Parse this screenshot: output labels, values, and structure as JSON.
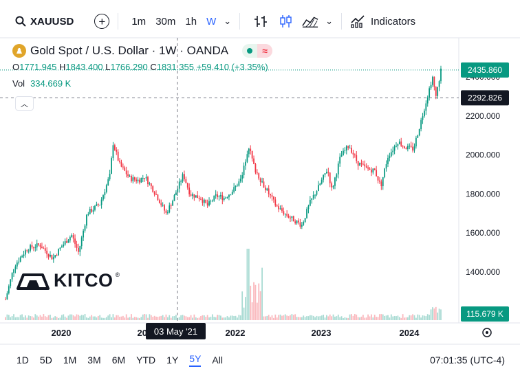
{
  "toolbar": {
    "symbol": "XAUUSD",
    "intervals": [
      "1m",
      "30m",
      "1h",
      "W"
    ],
    "active_interval": "W",
    "indicators_label": "Indicators"
  },
  "header": {
    "title": "Gold Spot / U.S. Dollar · 1W · OANDA",
    "ohlc": {
      "o_key": "O",
      "o_val": "1771.945",
      "h_key": "H",
      "h_val": "1843.400",
      "l_key": "L",
      "l_val": "1766.290",
      "c_key": "C",
      "c_val": "1831.355",
      "change": "+59.410 (+3.35%)"
    },
    "vol_key": "Vol",
    "vol_val": "334.669 K"
  },
  "logo": {
    "text": "KITCO",
    "reg": "®"
  },
  "bottom": {
    "ranges": [
      "1D",
      "5D",
      "1M",
      "3M",
      "6M",
      "YTD",
      "1Y",
      "5Y",
      "All"
    ],
    "active_range": "5Y",
    "clock": "07:01:35 (UTC-4)"
  },
  "colors": {
    "up": "#089981",
    "down": "#f23645",
    "accent": "#2962ff",
    "gold_badge": "#e0a52a"
  },
  "chart_data": {
    "type": "candlestick",
    "price_axis_ticks": [
      1400,
      1600,
      1800,
      2000,
      2200,
      2400
    ],
    "time_axis_labels": [
      "2020",
      "2021",
      "2022",
      "2023",
      "2024"
    ],
    "last_price_label": "2435.860",
    "crosshair_price_label": "2292.826",
    "crosshair_date_label": "03 May '21",
    "volume_label": "115.679 K",
    "y_range": [
      1260,
      2470
    ],
    "price_path": [
      [
        2019.35,
        1260
      ],
      [
        2019.45,
        1430
      ],
      [
        2019.6,
        1520
      ],
      [
        2019.75,
        1540
      ],
      [
        2019.9,
        1470
      ],
      [
        2020.0,
        1530
      ],
      [
        2020.12,
        1590
      ],
      [
        2020.2,
        1500
      ],
      [
        2020.3,
        1700
      ],
      [
        2020.45,
        1750
      ],
      [
        2020.57,
        1900
      ],
      [
        2020.6,
        2065
      ],
      [
        2020.68,
        1950
      ],
      [
        2020.8,
        1880
      ],
      [
        2020.9,
        1870
      ],
      [
        2020.97,
        1890
      ],
      [
        2021.1,
        1800
      ],
      [
        2021.22,
        1700
      ],
      [
        2021.3,
        1770
      ],
      [
        2021.42,
        1900
      ],
      [
        2021.5,
        1800
      ],
      [
        2021.62,
        1780
      ],
      [
        2021.7,
        1740
      ],
      [
        2021.8,
        1790
      ],
      [
        2021.9,
        1780
      ],
      [
        2022.0,
        1820
      ],
      [
        2022.1,
        1880
      ],
      [
        2022.18,
        2050
      ],
      [
        2022.25,
        1930
      ],
      [
        2022.35,
        1850
      ],
      [
        2022.5,
        1740
      ],
      [
        2022.6,
        1700
      ],
      [
        2022.7,
        1670
      ],
      [
        2022.8,
        1640
      ],
      [
        2022.9,
        1760
      ],
      [
        2023.0,
        1840
      ],
      [
        2023.1,
        1930
      ],
      [
        2023.15,
        1820
      ],
      [
        2023.25,
        1990
      ],
      [
        2023.35,
        2050
      ],
      [
        2023.45,
        1960
      ],
      [
        2023.55,
        1930
      ],
      [
        2023.65,
        1920
      ],
      [
        2023.72,
        1840
      ],
      [
        2023.8,
        1990
      ],
      [
        2023.92,
        2070
      ],
      [
        2024.0,
        2040
      ],
      [
        2024.1,
        2030
      ],
      [
        2024.18,
        2160
      ],
      [
        2024.28,
        2330
      ],
      [
        2024.32,
        2400
      ],
      [
        2024.36,
        2290
      ],
      [
        2024.42,
        2436
      ]
    ]
  }
}
